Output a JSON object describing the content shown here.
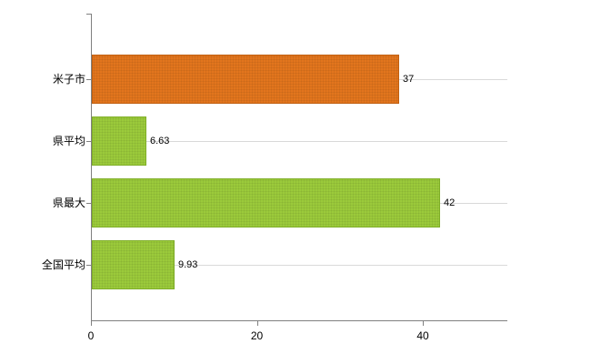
{
  "chart_data": {
    "type": "bar",
    "orientation": "horizontal",
    "title": "",
    "xlabel": "",
    "ylabel": "",
    "categories": [
      "米子市",
      "県平均",
      "県最大",
      "全国平均"
    ],
    "values": [
      37,
      6.63,
      42,
      9.93
    ],
    "value_labels": [
      "37",
      "6.63",
      "42",
      "9.93"
    ],
    "bar_colors": [
      "#e2751d",
      "#9bca3b",
      "#9bca3b",
      "#9bca3b"
    ],
    "bar_border_colors": [
      "#c05f10",
      "#7fae28",
      "#7fae28",
      "#7fae28"
    ],
    "xlim": [
      0,
      50
    ],
    "x_ticks": [
      0,
      20,
      40
    ],
    "x_tick_labels": [
      "0",
      "20",
      "40"
    ],
    "grid": "horizontal-category-lines",
    "legend": "none",
    "background_color": "#ffffff",
    "axis_color": "#808080",
    "gridline_color": "#d9d9d9"
  }
}
